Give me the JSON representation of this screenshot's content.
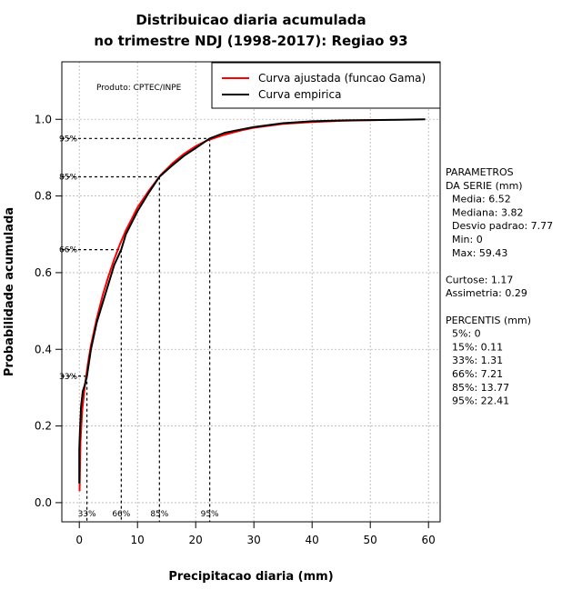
{
  "chart_data": {
    "type": "line",
    "title": [
      "Distribuicao diaria acumulada",
      "no trimestre NDJ (1998-2017): Regiao 93"
    ],
    "xlabel": "Precipitacao diaria (mm)",
    "ylabel": "Probabilidade acumulada",
    "xlim": [
      -3,
      62
    ],
    "ylim": [
      -0.05,
      1.15
    ],
    "x_ticks": [
      0,
      10,
      20,
      30,
      40,
      50,
      60
    ],
    "y_ticks": [
      0.0,
      0.2,
      0.4,
      0.6,
      0.8,
      1.0
    ],
    "grid": true,
    "producer": "Produto: CPTEC/INPE",
    "legend": {
      "placement": "top-right",
      "entries": [
        {
          "label": "Curva ajustada (funcao Gama)",
          "color": "#ff0000"
        },
        {
          "label": "Curva empirica",
          "color": "#000000"
        }
      ]
    },
    "series": [
      {
        "name": "Curva ajustada (funcao Gama)",
        "color": "#ff0000",
        "x": [
          0.05,
          0.2,
          0.5,
          1.0,
          1.5,
          2.0,
          3.0,
          4.0,
          5.0,
          6.0,
          7.0,
          8.0,
          9.0,
          10.0,
          12.0,
          14.0,
          16.0,
          18.0,
          20.0,
          22.0,
          25.0,
          28.0,
          30.0,
          35.0,
          40.0,
          45.0,
          50.0,
          51.0
        ],
        "y": [
          0.03,
          0.16,
          0.24,
          0.31,
          0.365,
          0.41,
          0.48,
          0.54,
          0.59,
          0.635,
          0.675,
          0.71,
          0.74,
          0.77,
          0.815,
          0.855,
          0.885,
          0.91,
          0.93,
          0.945,
          0.96,
          0.972,
          0.978,
          0.988,
          0.993,
          0.996,
          0.998,
          0.998
        ]
      },
      {
        "name": "Curva empirica",
        "color": "#000000",
        "x": [
          0.0,
          0.0,
          0.1,
          0.3,
          0.6,
          1.0,
          1.31,
          2.0,
          3.0,
          4.0,
          5.0,
          6.0,
          7.21,
          8.0,
          9.0,
          10.0,
          12.0,
          13.77,
          16.0,
          18.0,
          20.0,
          22.41,
          25.0,
          30.0,
          35.0,
          40.0,
          45.0,
          50.0,
          55.0,
          59.43
        ],
        "y": [
          0.05,
          0.14,
          0.18,
          0.25,
          0.29,
          0.31,
          0.33,
          0.4,
          0.47,
          0.52,
          0.57,
          0.62,
          0.66,
          0.7,
          0.73,
          0.76,
          0.81,
          0.85,
          0.88,
          0.905,
          0.925,
          0.95,
          0.965,
          0.98,
          0.99,
          0.995,
          0.997,
          0.998,
          0.999,
          1.0
        ]
      }
    ],
    "percentile_markers": [
      {
        "label": "33%",
        "x": 1.31,
        "y": 0.33
      },
      {
        "label": "66%",
        "x": 7.21,
        "y": 0.66
      },
      {
        "label": "85%",
        "x": 13.77,
        "y": 0.85
      },
      {
        "label": "95%",
        "x": 22.41,
        "y": 0.95
      }
    ],
    "side_panel": [
      "PARAMETROS",
      "DA SERIE (mm)",
      "  Media: 6.52",
      "  Mediana: 3.82",
      "  Desvio padrao: 7.77",
      "  Min: 0",
      "  Max: 59.43",
      "",
      "Curtose: 1.17",
      "Assimetria: 0.29",
      "",
      "PERCENTIS (mm)",
      "  5%: 0",
      "  15%: 0.11",
      "  33%: 1.31",
      "  66%: 7.21",
      "  85%: 13.77",
      "  95%: 22.41"
    ]
  }
}
